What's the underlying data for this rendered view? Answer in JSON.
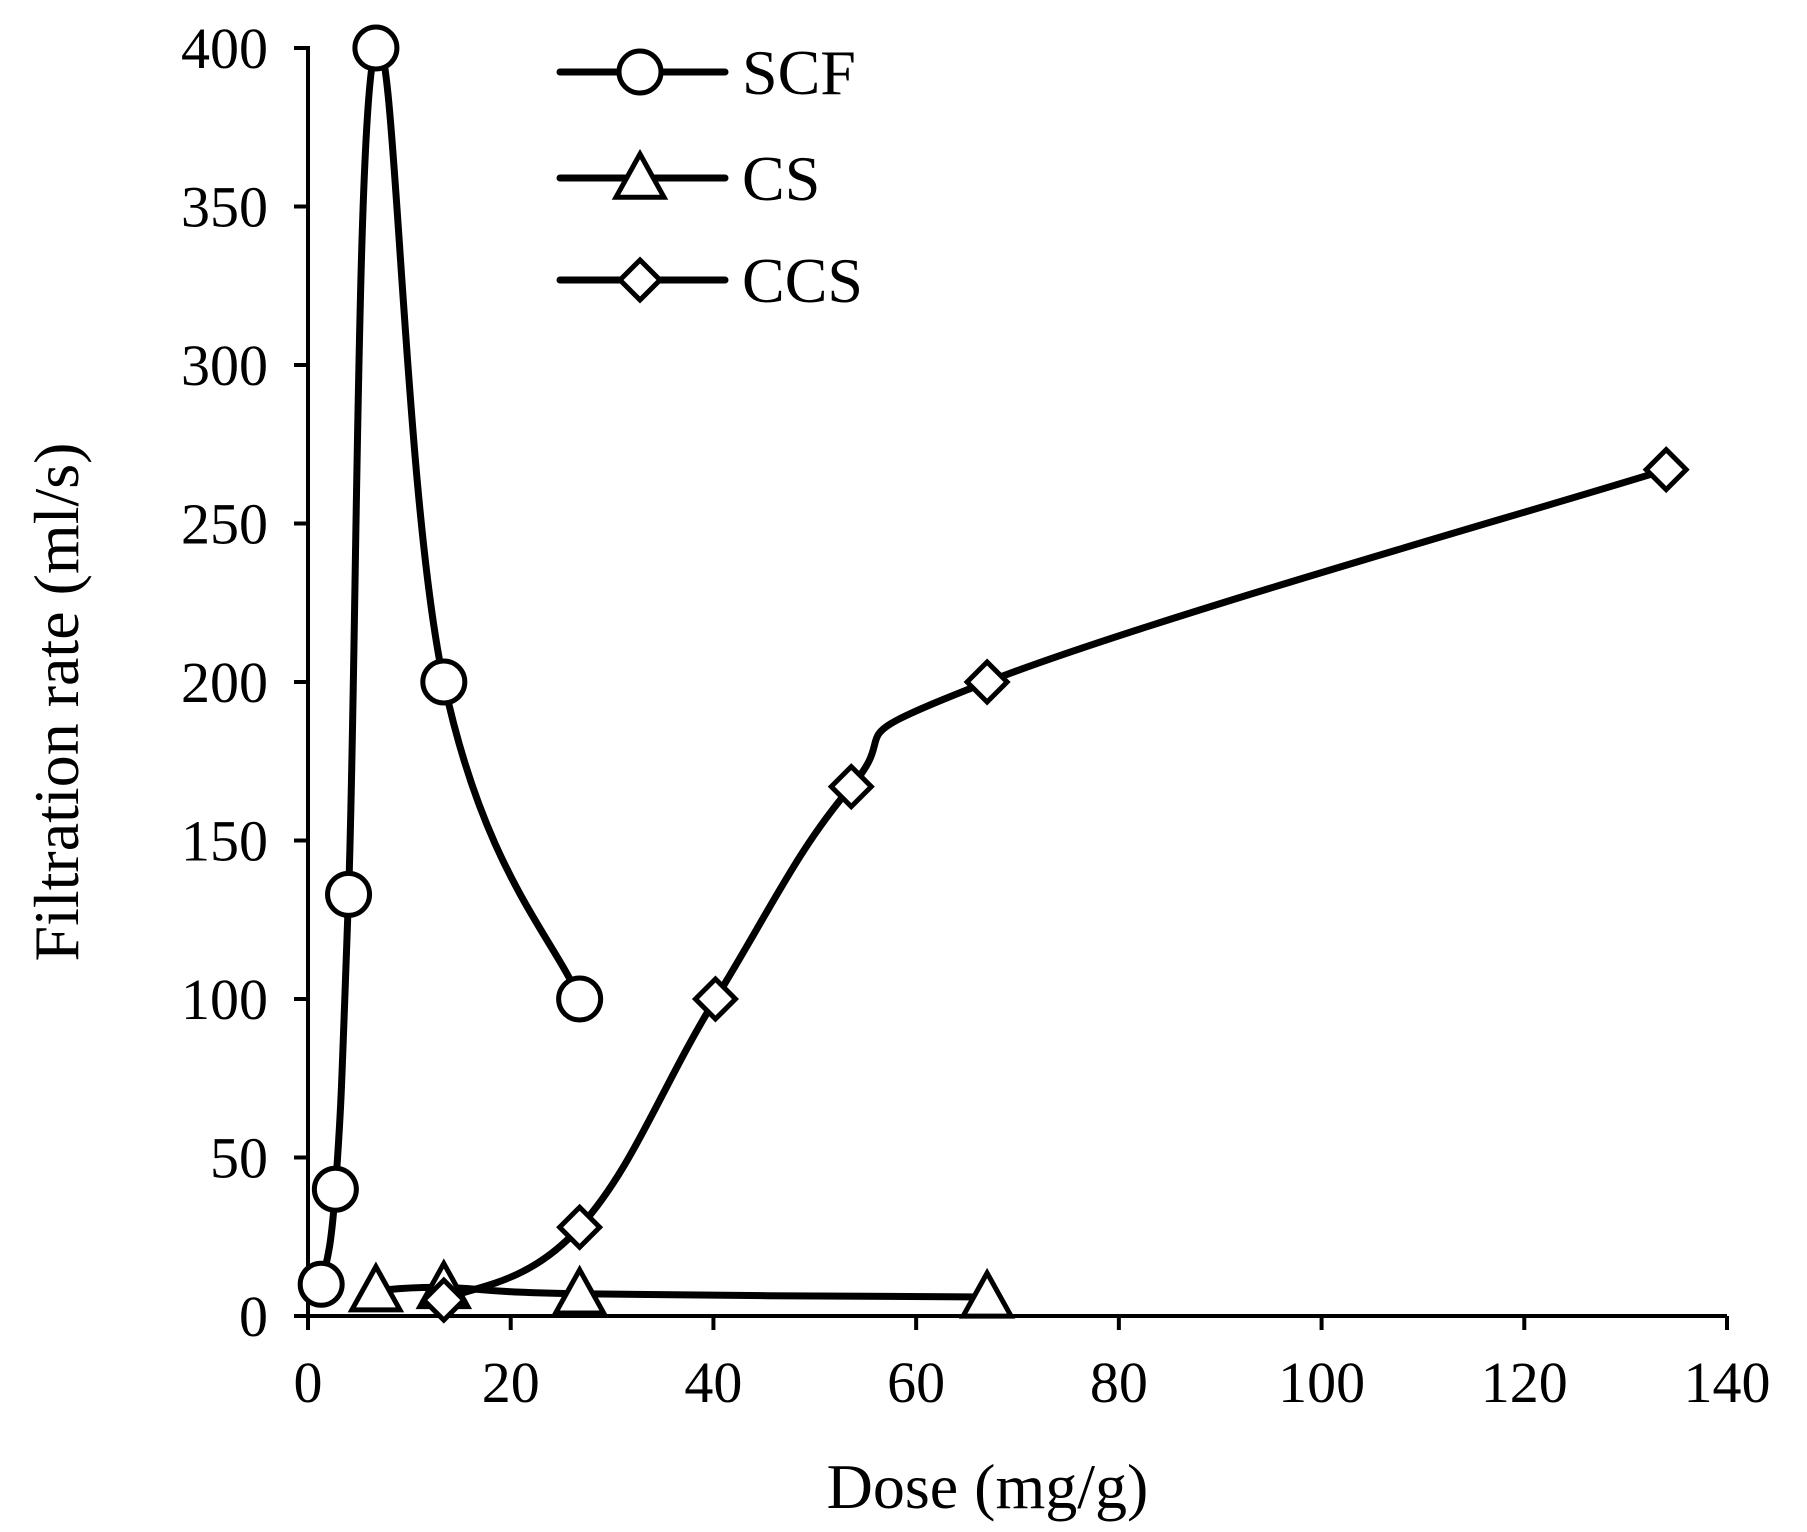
{
  "chart_data": {
    "type": "line",
    "xlabel": "Dose (mg/g)",
    "ylabel": "Filtration rate (ml/s)",
    "xlim": [
      0,
      140
    ],
    "ylim": [
      0,
      400
    ],
    "xticks": [
      0,
      20,
      40,
      60,
      80,
      100,
      120,
      140
    ],
    "yticks": [
      0,
      50,
      100,
      150,
      200,
      250,
      300,
      350,
      400
    ],
    "grid": false,
    "legend_position": "top-center",
    "smooth_lines": true,
    "colors": {
      "line": "#000000",
      "marker_fill": "#ffffff"
    },
    "series": [
      {
        "name": "SCF",
        "marker": "circle",
        "x": [
          1.3,
          2.7,
          4.0,
          6.7,
          13.4,
          26.8
        ],
        "y": [
          10,
          40,
          133,
          400,
          200,
          100
        ]
      },
      {
        "name": "CS",
        "marker": "triangle",
        "x": [
          6.7,
          13.4,
          26.8,
          67.0
        ],
        "y": [
          8,
          9,
          7,
          6
        ]
      },
      {
        "name": "CCS",
        "marker": "diamond",
        "x": [
          13.4,
          26.8,
          40.2,
          53.6,
          67.0,
          134.0
        ],
        "y": [
          5,
          28,
          100,
          167,
          200,
          267
        ]
      }
    ]
  }
}
